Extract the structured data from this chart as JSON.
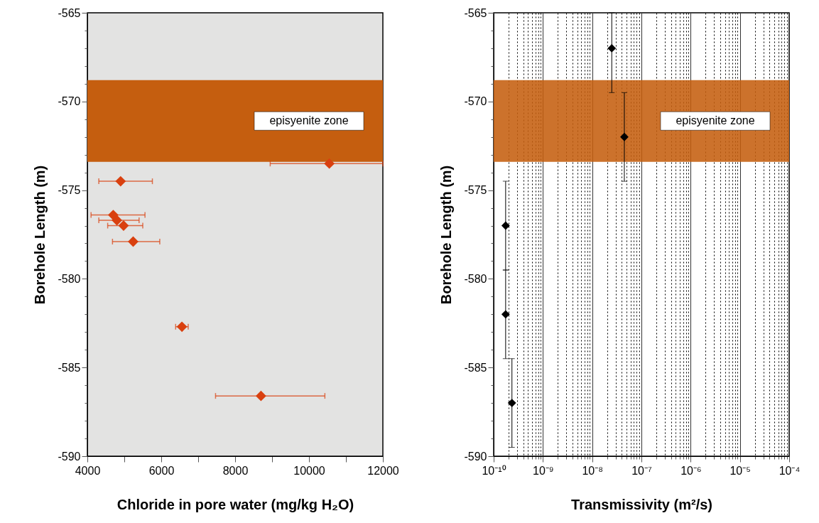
{
  "chart_data": [
    {
      "type": "scatter",
      "xlabel": "Chloride in pore water  (mg/kg H₂O)",
      "ylabel": "Borehole Length (m)",
      "x": [
        10550,
        4900,
        4700,
        4800,
        4980,
        5240,
        6560,
        8700
      ],
      "values": [
        -573.5,
        -574.5,
        -576.4,
        -576.7,
        -577.0,
        -577.9,
        -582.7,
        -586.6
      ],
      "xerrors": [
        [
          8950,
          12000
        ],
        [
          4310,
          5760
        ],
        [
          4100,
          5560
        ],
        [
          4310,
          5400
        ],
        [
          4550,
          5500
        ],
        [
          4680,
          5960
        ],
        [
          6390,
          6730
        ],
        [
          7470,
          10430
        ]
      ],
      "color": "#d9400f",
      "marker": "diamond",
      "xlim": [
        4000,
        12000
      ],
      "xticks": [
        4000,
        {
          "value": 5000,
          "label": null
        },
        6000,
        {
          "value": 7000,
          "label": null
        },
        8000,
        {
          "value": 9000,
          "label": null
        },
        10000,
        {
          "value": 11000,
          "label": null
        },
        12000
      ],
      "ylim": [
        -590,
        -565
      ],
      "yticks": [
        -590,
        {
          "value": -589,
          "label": null
        },
        {
          "value": -588,
          "label": null
        },
        {
          "value": -587,
          "label": null
        },
        {
          "value": -586,
          "label": null
        },
        -585,
        {
          "value": -584,
          "label": null
        },
        {
          "value": -583,
          "label": null
        },
        {
          "value": -582,
          "label": null
        },
        {
          "value": -581,
          "label": null
        },
        -580,
        {
          "value": -579,
          "label": null
        },
        {
          "value": -578,
          "label": null
        },
        {
          "value": -577,
          "label": null
        },
        {
          "value": -576,
          "label": null
        },
        -575,
        {
          "value": -574,
          "label": null
        },
        {
          "value": -573,
          "label": null
        },
        {
          "value": -572,
          "label": null
        },
        {
          "value": -571,
          "label": null
        },
        -570,
        {
          "value": -569,
          "label": null
        },
        {
          "value": -568,
          "label": null
        },
        {
          "value": -567,
          "label": null
        },
        {
          "value": -566,
          "label": null
        },
        -565
      ],
      "bands": [
        {
          "axis": "y",
          "from": -568.8,
          "to": -573.4,
          "label": "episyenite zone",
          "color": "#c55e0f"
        }
      ]
    },
    {
      "type": "scatter",
      "xlabel": "Transmissivity (m²/s)",
      "ylabel": "Borehole Length (m)",
      "x": [
        2.5e-08,
        4.5e-08,
        1.75e-10,
        1.75e-10,
        2.35e-10
      ],
      "values": [
        -567,
        -572,
        -577,
        -582,
        -587
      ],
      "errors": [
        [
          -569.5,
          -565
        ],
        [
          -574.5,
          -569.5
        ],
        [
          -579.5,
          -574.5
        ],
        [
          -584.5,
          -579.5
        ],
        [
          -589.5,
          -584.5
        ]
      ],
      "color": "#000000",
      "marker": "diamond",
      "log": "x",
      "grid": "x",
      "xlim": [
        1e-10,
        0.0001
      ],
      "xticks": [
        {
          "value": 1e-10,
          "label": "10⁻¹⁰"
        },
        {
          "value": 1e-09,
          "label": "10⁻⁹"
        },
        {
          "value": 1e-08,
          "label": "10⁻⁸"
        },
        {
          "value": 1e-07,
          "label": "10⁻⁷"
        },
        {
          "value": 1e-06,
          "label": "10⁻⁶"
        },
        {
          "value": 1e-05,
          "label": "10⁻⁵"
        },
        {
          "value": 0.0001,
          "label": "10⁻⁴"
        }
      ],
      "ylim": [
        -590,
        -565
      ],
      "yticks": [
        -590,
        {
          "value": -589,
          "label": null
        },
        {
          "value": -588,
          "label": null
        },
        {
          "value": -587,
          "label": null
        },
        {
          "value": -586,
          "label": null
        },
        -585,
        {
          "value": -584,
          "label": null
        },
        {
          "value": -583,
          "label": null
        },
        {
          "value": -582,
          "label": null
        },
        {
          "value": -581,
          "label": null
        },
        -580,
        {
          "value": -579,
          "label": null
        },
        {
          "value": -578,
          "label": null
        },
        {
          "value": -577,
          "label": null
        },
        {
          "value": -576,
          "label": null
        },
        -575,
        {
          "value": -574,
          "label": null
        },
        {
          "value": -573,
          "label": null
        },
        {
          "value": -572,
          "label": null
        },
        {
          "value": -571,
          "label": null
        },
        -570,
        {
          "value": -569,
          "label": null
        },
        {
          "value": -568,
          "label": null
        },
        {
          "value": -567,
          "label": null
        },
        {
          "value": -566,
          "label": null
        },
        -565
      ],
      "bands": [
        {
          "axis": "y",
          "from": -568.8,
          "to": -573.4,
          "label": "episyenite zone",
          "color": "#c55e0f"
        }
      ]
    }
  ]
}
